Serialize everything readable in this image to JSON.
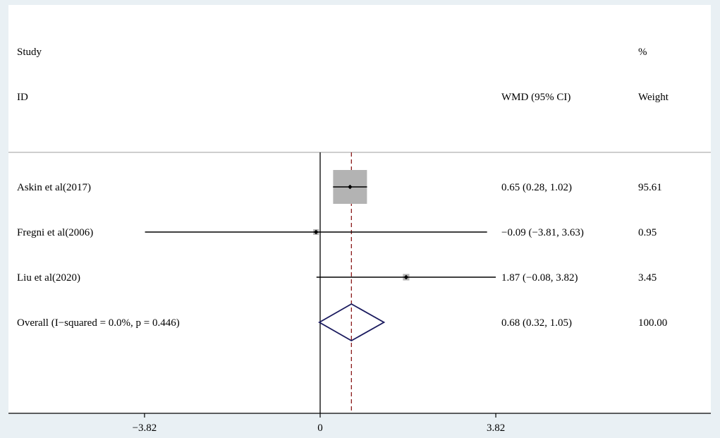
{
  "header": {
    "study_top": "Study",
    "study_bottom": "ID",
    "effect": "WMD (95% CI)",
    "weight_top": "%",
    "weight_bottom": "Weight"
  },
  "chart_data": {
    "type": "forest",
    "xlim": [
      -4.3,
      4.3
    ],
    "xticks": [
      {
        "value": -3.82,
        "label": "−3.82"
      },
      {
        "value": 0,
        "label": "0"
      },
      {
        "value": 3.82,
        "label": "3.82"
      }
    ],
    "null_line": 0,
    "overall_line": 0.68,
    "studies": [
      {
        "id": "Askin et al(2017)",
        "effect": 0.65,
        "lower": 0.28,
        "upper": 1.02,
        "weight": 95.61,
        "ci_label": "0.65 (0.28, 1.02)",
        "weight_label": "95.61"
      },
      {
        "id": "Fregni et al(2006)",
        "effect": -0.09,
        "lower": -3.81,
        "upper": 3.63,
        "weight": 0.95,
        "ci_label": "−0.09 (−3.81, 3.63)",
        "weight_label": "0.95"
      },
      {
        "id": "Liu et al(2020)",
        "effect": 1.87,
        "lower": -0.08,
        "upper": 3.82,
        "weight": 3.45,
        "ci_label": "1.87 (−0.08, 3.82)",
        "weight_label": "3.45"
      }
    ],
    "overall": {
      "label": "Overall  (I−squared = 0.0%, p = 0.446)",
      "effect": 0.68,
      "lower": 0.32,
      "upper": 1.05,
      "ci_label": "0.68 (0.32, 1.05)",
      "weight_label": "100.00"
    },
    "colors": {
      "background": "#e9f0f4",
      "panel": "#ffffff",
      "box": "#b3b3b3",
      "diamond": "#1a1a5e",
      "overall_line": "#8b1a1a",
      "header_rule": "#b0b0b0"
    }
  }
}
